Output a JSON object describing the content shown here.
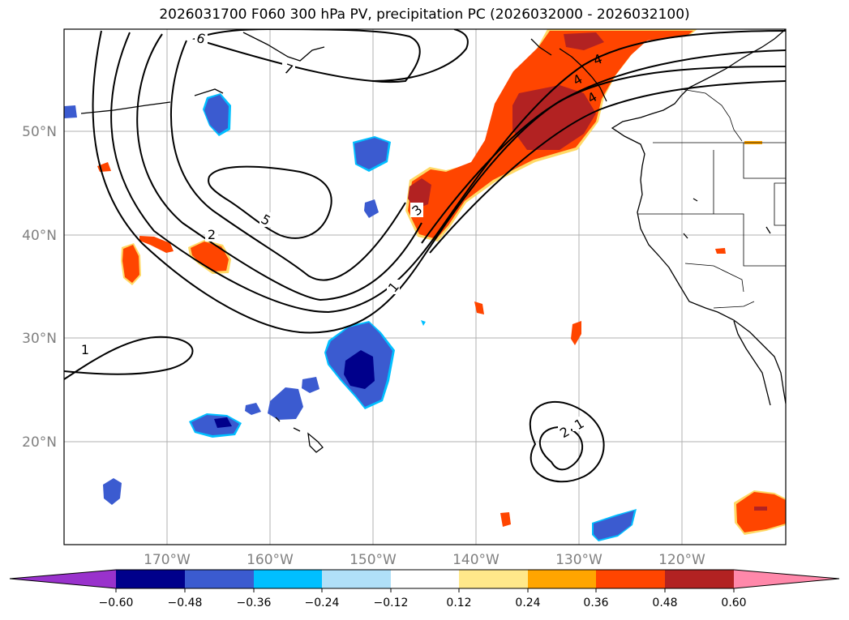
{
  "title": "2026031700 F060 300 hPa PV, precipitation PC (2026032000 - 2026032100)",
  "map": {
    "lat_labels": [
      "50°N",
      "40°N",
      "30°N",
      "20°N"
    ],
    "lon_labels": [
      "170°W",
      "160°W",
      "150°W",
      "140°W",
      "130°W",
      "120°W"
    ],
    "contour_labels": [
      "6",
      "7",
      "5",
      "2",
      "3",
      "1",
      "1",
      "4",
      "4",
      "4",
      "1",
      "2"
    ]
  },
  "colorbar": {
    "colors": [
      "#9932cc",
      "#00008b",
      "#3b5bd0",
      "#00bfff",
      "#b0e0f8",
      "#ffffff",
      "#ffe88a",
      "#ffa500",
      "#ff4500",
      "#b22222",
      "#ff88aa"
    ],
    "tick_labels": [
      "−0.60",
      "−0.48",
      "−0.36",
      "−0.24",
      "−0.12",
      "0.12",
      "0.24",
      "0.36",
      "0.48",
      "0.60"
    ]
  }
}
